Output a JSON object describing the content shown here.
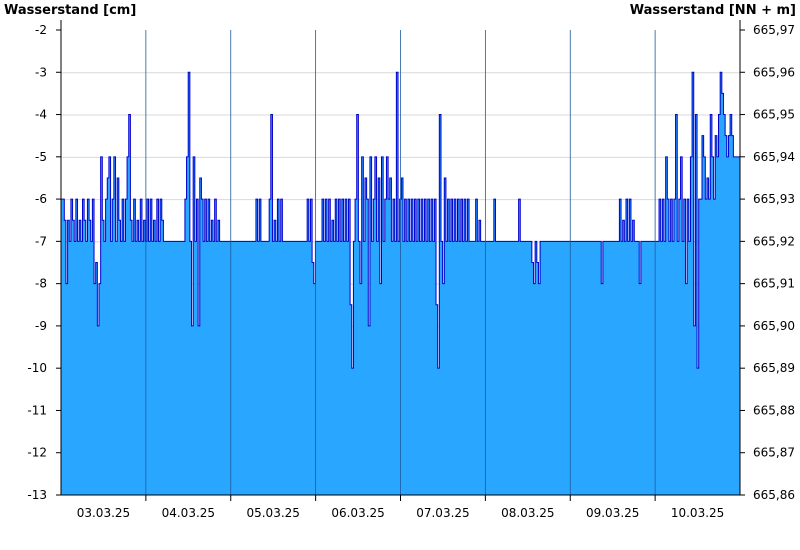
{
  "chart_data": {
    "type": "area",
    "left_axis_title": "Wasserstand [cm]",
    "right_axis_title": "Wasserstand [NN + m]",
    "ylim": [
      -13,
      -2
    ],
    "y_ticks": [
      "-2",
      "-3",
      "-4",
      "-5",
      "-6",
      "-7",
      "-8",
      "-9",
      "-10",
      "-11",
      "-12",
      "-13"
    ],
    "right_ticks": [
      "665,97",
      "665,96",
      "665,95",
      "665,94",
      "665,93",
      "665,92",
      "665,91",
      "665,90",
      "665,89",
      "665,88",
      "665,87",
      "665,86"
    ],
    "x_labels": [
      "03.03.25",
      "04.03.25",
      "05.03.25",
      "06.03.25",
      "07.03.25",
      "08.03.25",
      "09.03.25",
      "10.03.25"
    ],
    "x_start": "02.03.25 12:00",
    "x_end": "10.03.25 12:00",
    "grid_horizontal": true,
    "fill_color": "#29a6ff",
    "line_color": "#0000cc",
    "series": [
      {
        "values": [
          -6,
          -6,
          -6.5,
          -8,
          -6.5,
          -7,
          -6,
          -6.5,
          -7,
          -6,
          -7,
          -6.5,
          -7,
          -6,
          -6.5,
          -7,
          -6,
          -6.5,
          -7,
          -6,
          -8,
          -7.5,
          -9,
          -8,
          -5,
          -6.5,
          -7,
          -6,
          -5.5,
          -5,
          -7,
          -6,
          -5,
          -7,
          -5.5,
          -6.5,
          -7,
          -6,
          -7,
          -6,
          -5,
          -4,
          -6.5,
          -7,
          -6,
          -7,
          -6.5,
          -7,
          -6,
          -7,
          -6.5,
          -7,
          -6,
          -7,
          -6,
          -7,
          -6.5,
          -7,
          -6,
          -7,
          -6,
          -6.5,
          -7,
          -7,
          -7,
          -7,
          -7,
          -7,
          -7,
          -7,
          -7,
          -7,
          -7,
          -7,
          -7,
          -6,
          -5,
          -3,
          -7,
          -9,
          -5,
          -7,
          -6,
          -9,
          -5.5,
          -6,
          -7,
          -6,
          -7,
          -6,
          -7,
          -6.5,
          -7,
          -6,
          -7,
          -6.5,
          -7,
          -7,
          -7,
          -7,
          -7,
          -7,
          -7,
          -7,
          -7,
          -7,
          -7,
          -7,
          -7,
          -7,
          -7,
          -7,
          -7,
          -7,
          -7,
          -7,
          -7,
          -7,
          -6,
          -7,
          -6,
          -7,
          -7,
          -7,
          -7,
          -7,
          -6,
          -4,
          -7,
          -6.5,
          -7,
          -6,
          -7,
          -6,
          -7,
          -7,
          -7,
          -7,
          -7,
          -7,
          -7,
          -7,
          -7,
          -7,
          -7,
          -7,
          -7,
          -7,
          -7,
          -6,
          -7,
          -6,
          -7.5,
          -8,
          -7,
          -7,
          -7,
          -7,
          -6,
          -7,
          -6,
          -7,
          -6,
          -7,
          -6.5,
          -7,
          -6,
          -7,
          -6,
          -7,
          -6,
          -7,
          -6,
          -7,
          -6,
          -8.5,
          -10,
          -7,
          -6,
          -4,
          -7,
          -8,
          -5,
          -7,
          -5.5,
          -6,
          -9,
          -5,
          -7,
          -6,
          -5,
          -7,
          -5.5,
          -8,
          -5,
          -7,
          -6,
          -5,
          -6,
          -5.5,
          -7,
          -6,
          -7,
          -3,
          -7,
          -6,
          -5.5,
          -7,
          -6,
          -7,
          -6,
          -7,
          -6,
          -7,
          -6,
          -7,
          -6,
          -7,
          -6,
          -7,
          -6,
          -7,
          -6,
          -7,
          -6,
          -7,
          -6,
          -8.5,
          -10,
          -4,
          -7,
          -8,
          -5.5,
          -7,
          -6,
          -7,
          -6,
          -7,
          -6,
          -7,
          -6,
          -7,
          -6,
          -7,
          -6,
          -7,
          -6,
          -7,
          -7,
          -7,
          -7,
          -6,
          -7,
          -6.5,
          -7,
          -7,
          -7,
          -7,
          -7,
          -7,
          -7,
          -7,
          -6,
          -7,
          -7,
          -7,
          -7,
          -7,
          -7,
          -7,
          -7,
          -7,
          -7,
          -7,
          -7,
          -7,
          -7,
          -6,
          -7,
          -7,
          -7,
          -7,
          -7,
          -7,
          -7,
          -7.5,
          -8,
          -7,
          -7.5,
          -8,
          -7,
          -7,
          -7,
          -7,
          -7,
          -7,
          -7,
          -7,
          -7,
          -7,
          -7,
          -7,
          -7,
          -7,
          -7,
          -7,
          -7,
          -7,
          -7,
          -7,
          -7,
          -7,
          -7,
          -7,
          -7,
          -7,
          -7,
          -7,
          -7,
          -7,
          -7,
          -7,
          -7,
          -7,
          -7,
          -7,
          -7,
          -8,
          -7,
          -7,
          -7,
          -7,
          -7,
          -7,
          -7,
          -7,
          -7,
          -7,
          -6,
          -7,
          -6.5,
          -7,
          -6,
          -7,
          -6,
          -7,
          -6.5,
          -7,
          -7,
          -7,
          -8,
          -7,
          -7,
          -7,
          -7,
          -7,
          -7,
          -7,
          -7,
          -7,
          -7,
          -7,
          -6,
          -7,
          -6,
          -7,
          -5,
          -6,
          -7,
          -6,
          -7,
          -6,
          -4,
          -7,
          -6,
          -5,
          -7,
          -6,
          -8,
          -6,
          -7,
          -5,
          -3,
          -9,
          -4,
          -10,
          -6,
          -6,
          -4.5,
          -5,
          -6,
          -5.5,
          -6,
          -4,
          -5,
          -6,
          -4.5,
          -5,
          -4,
          -3,
          -3.5,
          -4,
          -4.5,
          -5,
          -4.5,
          -4,
          -4.5,
          -5,
          -5,
          -5,
          -5
        ]
      }
    ]
  }
}
